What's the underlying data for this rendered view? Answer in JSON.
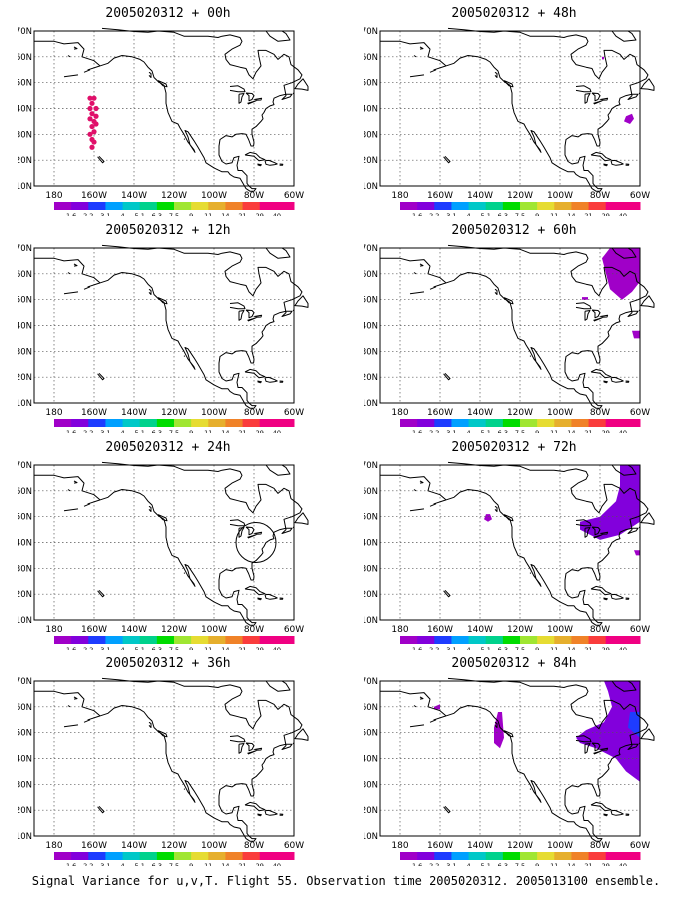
{
  "figure": {
    "caption": "Signal Variance for u,v,T. Flight 55. Observation time 2005020312. 2005013100 ensemble.",
    "lat_labels": [
      "70N",
      "60N",
      "50N",
      "40N",
      "30N",
      "20N",
      "10N"
    ],
    "lon_labels": [
      "180",
      "160W",
      "140W",
      "120W",
      "100W",
      "80W",
      "60W"
    ],
    "colorbar": {
      "labels": [
        "1.6",
        "2.2",
        "3.1",
        "4",
        "5.1",
        "6.3",
        "7.5",
        "9",
        "11",
        "14",
        "21",
        "29",
        "40"
      ],
      "colors": [
        "#a000c8",
        "#8200dc",
        "#1e3cff",
        "#00a0ff",
        "#00c8c8",
        "#00d28c",
        "#00dc00",
        "#a0e632",
        "#e6dc32",
        "#e6af2d",
        "#f08228",
        "#fa3c3c",
        "#f00082"
      ]
    },
    "map_extent": {
      "lon": [
        -190,
        -60
      ],
      "lat": [
        10,
        70
      ]
    },
    "panels": [
      {
        "id": "p00",
        "title": "2005020312 + 00h",
        "markers": [
          {
            "lon": -162,
            "lat": 44
          },
          {
            "lon": -160,
            "lat": 44
          },
          {
            "lon": -161,
            "lat": 42
          },
          {
            "lon": -159,
            "lat": 40
          },
          {
            "lon": -162,
            "lat": 40
          },
          {
            "lon": -161,
            "lat": 38
          },
          {
            "lon": -159,
            "lat": 37
          },
          {
            "lon": -162,
            "lat": 36
          },
          {
            "lon": -160,
            "lat": 35
          },
          {
            "lon": -161,
            "lat": 33
          },
          {
            "lon": -160,
            "lat": 31
          },
          {
            "lon": -162,
            "lat": 30
          },
          {
            "lon": -161,
            "lat": 28
          },
          {
            "lon": -160,
            "lat": 27
          },
          {
            "lon": -161,
            "lat": 25
          },
          {
            "lon": -159,
            "lat": 34
          }
        ],
        "circle": null,
        "blobs": []
      },
      {
        "id": "p12",
        "title": "2005020312 + 12h",
        "markers": [],
        "circle": null,
        "blobs": []
      },
      {
        "id": "p24",
        "title": "2005020312 + 24h",
        "markers": [],
        "circle": {
          "lon": -79,
          "lat": 40,
          "r_deg": 10
        },
        "blobs": []
      },
      {
        "id": "p36",
        "title": "2005020312 + 36h",
        "markers": [],
        "circle": null,
        "blobs": []
      },
      {
        "id": "p48",
        "title": "2005020312 + 48h",
        "markers": [],
        "circle": null,
        "blobs": [
          {
            "color": "#a000c8",
            "points": [
              [
                -67,
                37
              ],
              [
                -64,
                38
              ],
              [
                -63,
                36
              ],
              [
                -65,
                34
              ],
              [
                -68,
                35
              ]
            ]
          },
          {
            "color": "#a000c8",
            "points": [
              [
                -79,
                60
              ],
              [
                -78,
                60
              ],
              [
                -78,
                59
              ],
              [
                -79,
                59
              ]
            ]
          }
        ]
      },
      {
        "id": "p60",
        "title": "2005020312 + 60h",
        "markers": [],
        "circle": null,
        "blobs": [
          {
            "color": "#a000c8",
            "points": [
              [
                -75,
                70
              ],
              [
                -60,
                70
              ],
              [
                -60,
                57
              ],
              [
                -64,
                53
              ],
              [
                -69,
                50
              ],
              [
                -75,
                54
              ],
              [
                -77,
                60
              ],
              [
                -79,
                66
              ]
            ]
          },
          {
            "color": "#a000c8",
            "points": [
              [
                -64,
                38
              ],
              [
                -60,
                38
              ],
              [
                -60,
                35
              ],
              [
                -63,
                35
              ]
            ]
          },
          {
            "color": "#a000c8",
            "points": [
              [
                -89,
                51
              ],
              [
                -86,
                51
              ],
              [
                -86,
                50
              ],
              [
                -89,
                50
              ]
            ]
          }
        ]
      },
      {
        "id": "p72",
        "title": "2005020312 + 72h",
        "markers": [],
        "circle": null,
        "blobs": [
          {
            "color": "#8200dc",
            "points": [
              [
                -70,
                70
              ],
              [
                -60,
                70
              ],
              [
                -60,
                48
              ],
              [
                -70,
                43
              ],
              [
                -80,
                41
              ],
              [
                -90,
                45
              ],
              [
                -90,
                48
              ],
              [
                -80,
                50
              ],
              [
                -72,
                56
              ],
              [
                -70,
                62
              ]
            ]
          },
          {
            "color": "#a000c8",
            "points": [
              [
                -137,
                51
              ],
              [
                -135,
                51
              ],
              [
                -134,
                49
              ],
              [
                -136,
                48
              ],
              [
                -138,
                49
              ]
            ]
          },
          {
            "color": "#a000c8",
            "points": [
              [
                -63,
                37
              ],
              [
                -60,
                37
              ],
              [
                -60,
                35
              ],
              [
                -62,
                35
              ]
            ]
          }
        ]
      },
      {
        "id": "p84",
        "title": "2005020312 + 84h",
        "markers": [],
        "circle": null,
        "blobs": [
          {
            "color": "#8200dc",
            "points": [
              [
                -78,
                70
              ],
              [
                -60,
                70
              ],
              [
                -60,
                31
              ],
              [
                -67,
                35
              ],
              [
                -72,
                40
              ],
              [
                -82,
                44
              ],
              [
                -90,
                46
              ],
              [
                -92,
                48
              ],
              [
                -87,
                51
              ],
              [
                -78,
                54
              ],
              [
                -74,
                60
              ],
              [
                -76,
                66
              ]
            ]
          },
          {
            "color": "#1e3cff",
            "points": [
              [
                -65,
                58
              ],
              [
                -60,
                58
              ],
              [
                -60,
                48
              ],
              [
                -66,
                52
              ]
            ]
          },
          {
            "color": "#a000c8",
            "points": [
              [
                -131,
                58
              ],
              [
                -129,
                58
              ],
              [
                -128,
                48
              ],
              [
                -130,
                44
              ],
              [
                -133,
                46
              ],
              [
                -133,
                52
              ]
            ]
          },
          {
            "color": "#a000c8",
            "points": [
              [
                -163,
                60
              ],
              [
                -160,
                61
              ],
              [
                -160,
                59
              ],
              [
                -163,
                59
              ]
            ]
          }
        ]
      }
    ]
  }
}
